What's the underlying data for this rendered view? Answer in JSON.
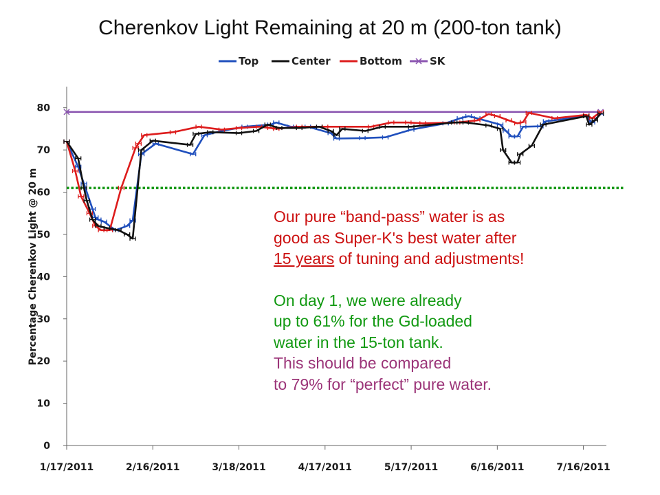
{
  "colors": {
    "top": "#1f4fbd",
    "center": "#111111",
    "bottom": "#dd1c1c",
    "sk": "#8b55b0",
    "dotted": "#1a9a1a",
    "axis": "#666666"
  },
  "notes": {
    "line1": "Our pure “band-pass” water is as",
    "line2": "good as Super-K's best water after",
    "line3_underlined": "15 years",
    "line3_rest": " of tuning and adjustments!",
    "line4": "On day 1, we were already",
    "line5": "up to 61% for the Gd-loaded",
    "line6": "water in the 15-ton tank.",
    "line7": "This should be compared",
    "line8": "to 79% for “perfect” pure water."
  },
  "chart_data": {
    "type": "line",
    "title": "Cherenkov Light Remaining at 20 m (200-ton tank)",
    "ylabel": "Percentage Cherenkov Light @ 20 m",
    "ylim": [
      0,
      85
    ],
    "yticks": [
      0,
      10,
      20,
      30,
      40,
      50,
      60,
      70,
      80
    ],
    "xlim": [
      "1/17/2011",
      "7/24/2011"
    ],
    "xticks": [
      "1/17/2011",
      "2/16/2011",
      "3/18/2011",
      "4/17/2011",
      "5/17/2011",
      "6/16/2011",
      "7/16/2011"
    ],
    "legend_position": "top-center",
    "reference_line": {
      "value": 61,
      "style": "dotted",
      "color": "#1a9a1a"
    },
    "series": [
      {
        "name": "Top",
        "color": "#1f4fbd",
        "points": [
          [
            "1/17/2011",
            72
          ],
          [
            "1/21/2011",
            66
          ],
          [
            "1/23/2011",
            62
          ],
          [
            "1/26/2011",
            56
          ],
          [
            "1/27/2011",
            54
          ],
          [
            "1/28/2011",
            53.5
          ],
          [
            "1/30/2011",
            53
          ],
          [
            "2/3/2011",
            51
          ],
          [
            "2/7/2011",
            52
          ],
          [
            "2/9/2011",
            53.3
          ],
          [
            "2/12/2011",
            69
          ],
          [
            "2/17/2011",
            71.5
          ],
          [
            "3/2/2011",
            69
          ],
          [
            "3/6/2011",
            73.5
          ],
          [
            "3/12/2011",
            74.5
          ],
          [
            "3/20/2011",
            75.5
          ],
          [
            "3/29/2011",
            76
          ],
          [
            "3/31/2011",
            76.5
          ],
          [
            "4/5/2011",
            75.5
          ],
          [
            "4/11/2011",
            75.5
          ],
          [
            "4/19/2011",
            74
          ],
          [
            "4/21/2011",
            72.7
          ],
          [
            "4/30/2011",
            72.8
          ],
          [
            "5/8/2011",
            73
          ],
          [
            "5/17/2011",
            74.8
          ],
          [
            "5/29/2011",
            76.3
          ],
          [
            "6/3/2011",
            77.5
          ],
          [
            "6/6/2011",
            78
          ],
          [
            "6/9/2011",
            77.5
          ],
          [
            "6/17/2011",
            76
          ],
          [
            "6/19/2011",
            74.5
          ],
          [
            "6/21/2011",
            73.2
          ],
          [
            "6/23/2011",
            73.2
          ],
          [
            "6/25/2011",
            75.5
          ],
          [
            "7/1/2011",
            75.6
          ],
          [
            "7/3/2011",
            76.8
          ],
          [
            "7/17/2011",
            78
          ],
          [
            "7/19/2011",
            76.5
          ],
          [
            "7/22/2011",
            78.5
          ]
        ]
      },
      {
        "name": "Center",
        "color": "#111111",
        "points": [
          [
            "1/17/2011",
            72
          ],
          [
            "1/21/2011",
            68
          ],
          [
            "1/23/2011",
            61
          ],
          [
            "1/24/2011",
            58
          ],
          [
            "1/26/2011",
            53.5
          ],
          [
            "1/28/2011",
            52
          ],
          [
            "1/31/2011",
            51.5
          ],
          [
            "2/4/2011",
            51
          ],
          [
            "2/7/2011",
            50
          ],
          [
            "2/9/2011",
            49
          ],
          [
            "2/12/2011",
            70
          ],
          [
            "2/16/2011",
            72.2
          ],
          [
            "3/1/2011",
            71.2
          ],
          [
            "3/3/2011",
            73.8
          ],
          [
            "3/8/2011",
            74.2
          ],
          [
            "3/18/2011",
            74
          ],
          [
            "3/24/2011",
            74.5
          ],
          [
            "3/28/2011",
            76
          ],
          [
            "4/1/2011",
            75.2
          ],
          [
            "4/8/2011",
            75.2
          ],
          [
            "4/15/2011",
            75.5
          ],
          [
            "4/19/2011",
            74.5
          ],
          [
            "4/21/2011",
            73.5
          ],
          [
            "4/23/2011",
            75
          ],
          [
            "5/1/2011",
            74.5
          ],
          [
            "5/7/2011",
            75.5
          ],
          [
            "5/17/2011",
            75.5
          ],
          [
            "6/1/2011",
            76.5
          ],
          [
            "6/5/2011",
            76.5
          ],
          [
            "6/13/2011",
            75.8
          ],
          [
            "6/17/2011",
            75
          ],
          [
            "6/18/2011",
            70
          ],
          [
            "6/21/2011",
            67
          ],
          [
            "6/23/2011",
            67
          ],
          [
            "6/24/2011",
            69
          ],
          [
            "6/28/2011",
            71
          ],
          [
            "7/2/2011",
            76
          ],
          [
            "7/17/2011",
            78
          ],
          [
            "7/18/2011",
            76
          ],
          [
            "7/20/2011",
            77
          ],
          [
            "7/22/2011",
            78.6
          ]
        ]
      },
      {
        "name": "Bottom",
        "color": "#dd1c1c",
        "points": [
          [
            "1/17/2011",
            72
          ],
          [
            "1/20/2011",
            65
          ],
          [
            "1/22/2011",
            59
          ],
          [
            "1/25/2011",
            55
          ],
          [
            "1/27/2011",
            52
          ],
          [
            "1/29/2011",
            51
          ],
          [
            "2/1/2011",
            51
          ],
          [
            "2/5/2011",
            61
          ],
          [
            "2/10/2011",
            70.5
          ],
          [
            "2/11/2011",
            71.5
          ],
          [
            "2/13/2011",
            73.5
          ],
          [
            "2/23/2011",
            74.2
          ],
          [
            "3/4/2011",
            75.5
          ],
          [
            "3/12/2011",
            74.8
          ],
          [
            "3/18/2011",
            75.2
          ],
          [
            "3/25/2011",
            75.5
          ],
          [
            "3/29/2011",
            75.2
          ],
          [
            "3/31/2011",
            75
          ],
          [
            "4/8/2011",
            75.5
          ],
          [
            "4/17/2011",
            75.5
          ],
          [
            "5/3/2011",
            75.5
          ],
          [
            "5/10/2011",
            76.5
          ],
          [
            "5/16/2011",
            76.5
          ],
          [
            "5/21/2011",
            76.3
          ],
          [
            "6/2/2011",
            76.5
          ],
          [
            "6/9/2011",
            77
          ],
          [
            "6/13/2011",
            78.5
          ],
          [
            "6/16/2011",
            78
          ],
          [
            "6/20/2011",
            77
          ],
          [
            "6/23/2011",
            76.3
          ],
          [
            "6/25/2011",
            76.6
          ],
          [
            "6/27/2011",
            78.8
          ],
          [
            "7/6/2011",
            77.5
          ],
          [
            "7/17/2011",
            78.3
          ],
          [
            "7/19/2011",
            77.5
          ],
          [
            "7/22/2011",
            79
          ]
        ]
      },
      {
        "name": "SK",
        "color": "#8b55b0",
        "points": [
          [
            "1/17/2011",
            79
          ],
          [
            "7/22/2011",
            79
          ]
        ]
      }
    ]
  }
}
